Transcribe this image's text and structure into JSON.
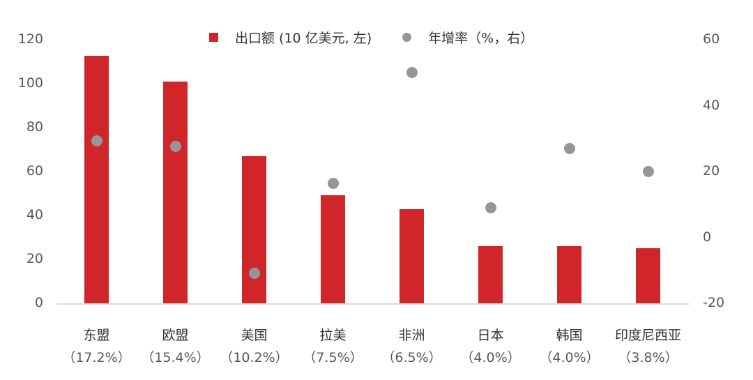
{
  "legend": {
    "bar_label": "出口额 (10 亿美元, 左)",
    "dot_label": "年增率（%，右）"
  },
  "left_axis_ticks": [
    "120",
    "100",
    "80",
    "60",
    "40",
    "20",
    "0"
  ],
  "right_axis_ticks": [
    "60",
    "40",
    "20",
    "0",
    "-20"
  ],
  "categories": [
    {
      "name": "东盟",
      "share": "（17.2%）"
    },
    {
      "name": "欧盟",
      "share": "（15.4%）"
    },
    {
      "name": "美国",
      "share": "（10.2%）"
    },
    {
      "name": "拉美",
      "share": "（7.5%）"
    },
    {
      "name": "非洲",
      "share": "（6.5%）"
    },
    {
      "name": "日本",
      "share": "（4.0%）"
    },
    {
      "name": "韩国",
      "share": "（4.0%）"
    },
    {
      "name": "印度尼西亚",
      "share": "（3.8%）"
    }
  ],
  "colors": {
    "bar": "#d0262a",
    "dot": "#969696",
    "axis": "#d9d9d9"
  },
  "chart_data": {
    "type": "bar",
    "title": "",
    "categories": [
      "东盟",
      "欧盟",
      "美国",
      "拉美",
      "非洲",
      "日本",
      "韩国",
      "印度尼西亚"
    ],
    "category_shares": [
      "17.2%",
      "15.4%",
      "10.2%",
      "7.5%",
      "6.5%",
      "4.0%",
      "4.0%",
      "3.8%"
    ],
    "series": [
      {
        "name": "出口额 (10 亿美元, 左)",
        "type": "bar",
        "axis": "left",
        "values": [
          112.7,
          101.0,
          67.0,
          49.2,
          42.9,
          26.0,
          26.0,
          25.0
        ]
      },
      {
        "name": "年增率（%，右）",
        "type": "scatter",
        "axis": "right",
        "values": [
          29.4,
          27.7,
          -11.0,
          16.3,
          50.0,
          8.9,
          27.0,
          20.0
        ]
      }
    ],
    "ylim_left": [
      0,
      120
    ],
    "ylim_right": [
      -20,
      60
    ],
    "yticks_left": [
      0,
      20,
      40,
      60,
      80,
      100,
      120
    ],
    "yticks_right": [
      -20,
      0,
      20,
      40,
      60
    ],
    "xlabel": "",
    "ylabel": "",
    "grid": false,
    "legend_position": "top"
  }
}
